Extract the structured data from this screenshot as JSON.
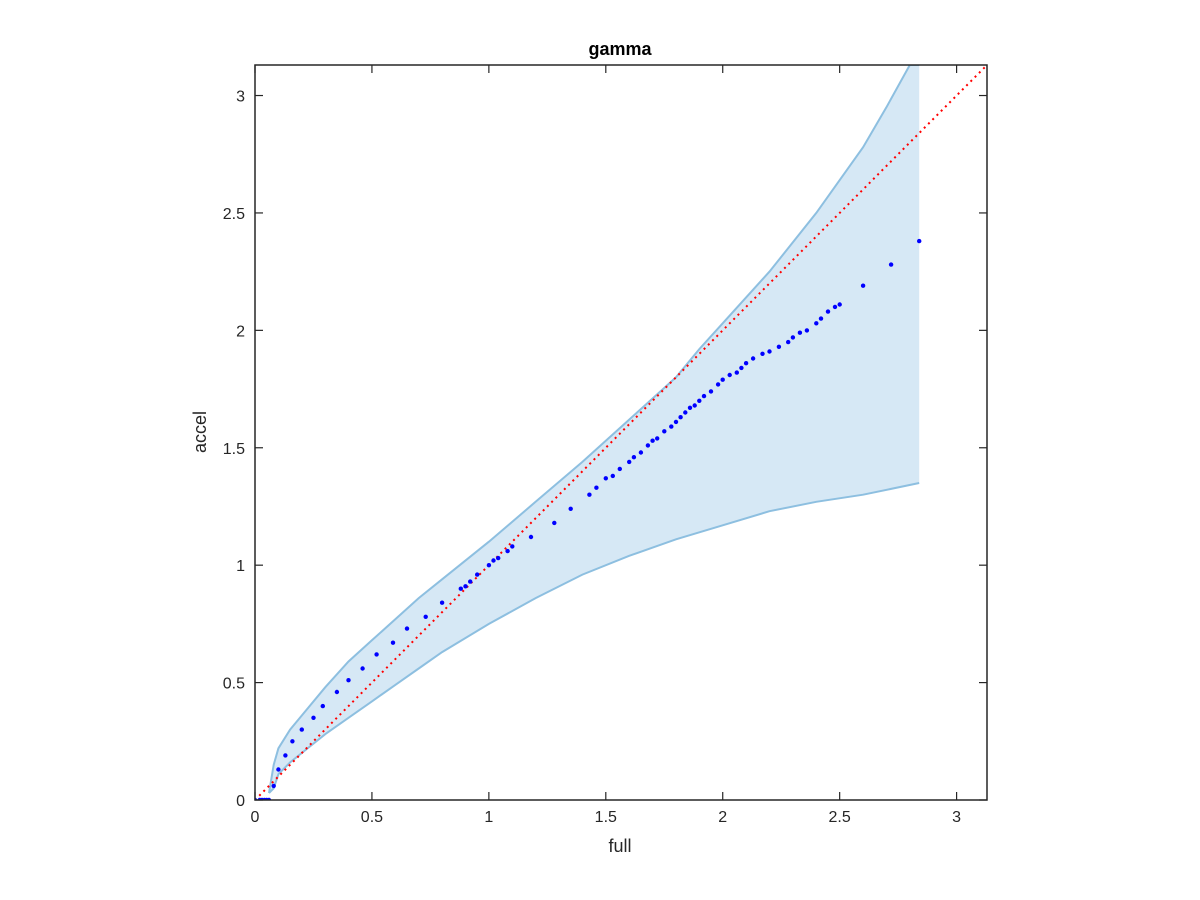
{
  "chart_data": {
    "type": "scatter",
    "title": "gamma",
    "xlabel": "full",
    "ylabel": "accel",
    "xlim": [
      0,
      3.13
    ],
    "ylim": [
      0,
      3.13
    ],
    "xticks": [
      0,
      0.5,
      1,
      1.5,
      2,
      2.5,
      3
    ],
    "yticks": [
      0,
      0.5,
      1,
      1.5,
      2,
      2.5,
      3
    ],
    "xtick_labels": [
      "0",
      "0.5",
      "1",
      "1.5",
      "2",
      "2.5",
      "3"
    ],
    "ytick_labels": [
      "0",
      "0.5",
      "1",
      "1.5",
      "2",
      "2.5",
      "3"
    ],
    "grid": false,
    "colors": {
      "points": "#0000ff",
      "reference_line": "#ff0000",
      "band_fill": "#d6e8f5",
      "band_edge": "#8dbfe0",
      "axes": "#262626"
    },
    "reference_line": {
      "style": "dotted",
      "points": [
        [
          0,
          0
        ],
        [
          3.13,
          3.13
        ]
      ]
    },
    "band": {
      "upper": [
        [
          0.06,
          0.03
        ],
        [
          0.08,
          0.15
        ],
        [
          0.1,
          0.22
        ],
        [
          0.15,
          0.3
        ],
        [
          0.2,
          0.36
        ],
        [
          0.3,
          0.48
        ],
        [
          0.4,
          0.59
        ],
        [
          0.5,
          0.68
        ],
        [
          0.6,
          0.77
        ],
        [
          0.7,
          0.86
        ],
        [
          0.8,
          0.94
        ],
        [
          1.0,
          1.1
        ],
        [
          1.2,
          1.27
        ],
        [
          1.4,
          1.44
        ],
        [
          1.6,
          1.62
        ],
        [
          1.8,
          1.8
        ],
        [
          1.9,
          1.92
        ],
        [
          2.0,
          2.03
        ],
        [
          2.2,
          2.25
        ],
        [
          2.4,
          2.5
        ],
        [
          2.6,
          2.78
        ],
        [
          2.7,
          2.95
        ],
        [
          2.8,
          3.13
        ],
        [
          2.84,
          3.13
        ]
      ],
      "lower": [
        [
          0.06,
          0.03
        ],
        [
          0.08,
          0.05
        ],
        [
          0.1,
          0.11
        ],
        [
          0.15,
          0.16
        ],
        [
          0.2,
          0.2
        ],
        [
          0.3,
          0.28
        ],
        [
          0.4,
          0.35
        ],
        [
          0.5,
          0.42
        ],
        [
          0.6,
          0.49
        ],
        [
          0.7,
          0.56
        ],
        [
          0.8,
          0.63
        ],
        [
          1.0,
          0.75
        ],
        [
          1.2,
          0.86
        ],
        [
          1.4,
          0.96
        ],
        [
          1.6,
          1.04
        ],
        [
          1.8,
          1.11
        ],
        [
          2.0,
          1.17
        ],
        [
          2.2,
          1.23
        ],
        [
          2.4,
          1.27
        ],
        [
          2.6,
          1.3
        ],
        [
          2.84,
          1.35
        ]
      ]
    },
    "series": [
      {
        "x": [
          0.0,
          0.02,
          0.03,
          0.04,
          0.05,
          0.06,
          0.08,
          0.1,
          0.13,
          0.16,
          0.2,
          0.25,
          0.29,
          0.35,
          0.4,
          0.46,
          0.52,
          0.59,
          0.65,
          0.73,
          0.8,
          0.88,
          0.9,
          0.92,
          0.95,
          1.0,
          1.02,
          1.04,
          1.08,
          1.1,
          1.18,
          1.28,
          1.35,
          1.43,
          1.46,
          1.5,
          1.53,
          1.56,
          1.6,
          1.62,
          1.65,
          1.68,
          1.7,
          1.72,
          1.75,
          1.78,
          1.8,
          1.82,
          1.84,
          1.86,
          1.88,
          1.9,
          1.92,
          1.95,
          1.98,
          2.0,
          2.03,
          2.06,
          2.08,
          2.1,
          2.13,
          2.17,
          2.2,
          2.24,
          2.28,
          2.3,
          2.33,
          2.36,
          2.4,
          2.42,
          2.45,
          2.48,
          2.5,
          2.6,
          2.72,
          2.84
        ],
        "y": [
          0.0,
          0.0,
          0.0,
          0.0,
          0.0,
          0.0,
          0.06,
          0.13,
          0.19,
          0.25,
          0.3,
          0.35,
          0.4,
          0.46,
          0.51,
          0.56,
          0.62,
          0.67,
          0.73,
          0.78,
          0.84,
          0.9,
          0.91,
          0.93,
          0.96,
          1.0,
          1.02,
          1.03,
          1.06,
          1.08,
          1.12,
          1.18,
          1.24,
          1.3,
          1.33,
          1.37,
          1.38,
          1.41,
          1.44,
          1.46,
          1.48,
          1.51,
          1.53,
          1.54,
          1.57,
          1.59,
          1.61,
          1.63,
          1.65,
          1.67,
          1.68,
          1.7,
          1.72,
          1.74,
          1.77,
          1.79,
          1.81,
          1.82,
          1.84,
          1.86,
          1.88,
          1.9,
          1.91,
          1.93,
          1.95,
          1.97,
          1.99,
          2.0,
          2.03,
          2.05,
          2.08,
          2.1,
          2.11,
          2.19,
          2.28,
          2.38
        ]
      }
    ]
  }
}
